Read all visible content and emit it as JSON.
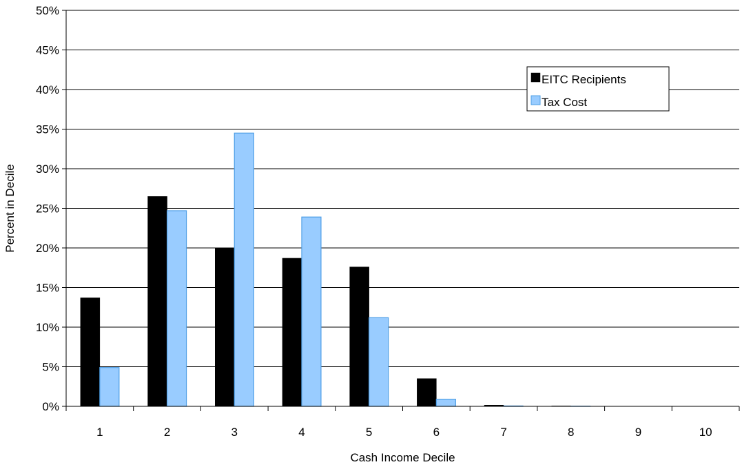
{
  "chart_data": {
    "type": "bar",
    "title": "",
    "xlabel": "Cash Income Decile",
    "ylabel": "Percent in Decile",
    "categories": [
      "1",
      "2",
      "3",
      "4",
      "5",
      "6",
      "7",
      "8",
      "9",
      "10"
    ],
    "series": [
      {
        "name": "EITC Recipients",
        "color": "#000000",
        "values": [
          13.7,
          26.5,
          20.0,
          18.7,
          17.6,
          3.5,
          0.15,
          0.05,
          0.0,
          0.0
        ]
      },
      {
        "name": "Tax Cost",
        "color": "#99ccff",
        "values": [
          4.9,
          24.7,
          34.5,
          23.9,
          11.2,
          0.9,
          0.05,
          0.02,
          0.0,
          0.0
        ]
      }
    ],
    "ylim": [
      0,
      50
    ],
    "yticks": [
      0,
      5,
      10,
      15,
      20,
      25,
      30,
      35,
      40,
      45,
      50
    ],
    "ytick_format": "percent",
    "grid": "horizontal",
    "legend_position": "top-right"
  }
}
